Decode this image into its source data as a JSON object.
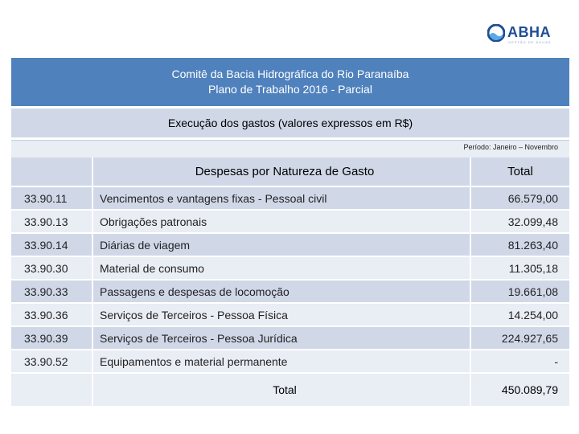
{
  "logo": {
    "text": "ABHA",
    "subtext": "GESTÃO DE ÁGUAS",
    "brand_color": "#1f4e96"
  },
  "header": {
    "line1": "Comitê da Bacia Hidrográfica do Rio Paranaíba",
    "line2": "Plano de Trabalho 2016 - Parcial"
  },
  "subtitle": "Execução dos gastos (valores expressos em R$)",
  "period": "Período: Janeiro – Novembro",
  "table": {
    "header_description": "Despesas por Natureza de Gasto",
    "header_total": "Total",
    "rows": [
      {
        "code": "33.90.11",
        "description": "Vencimentos e vantagens fixas - Pessoal civil",
        "total": "66.579,00"
      },
      {
        "code": "33.90.13",
        "description": "Obrigações patronais",
        "total": "32.099,48"
      },
      {
        "code": "33.90.14",
        "description": "Diárias de viagem",
        "total": "81.263,40"
      },
      {
        "code": "33.90.30",
        "description": "Material de consumo",
        "total": "11.305,18"
      },
      {
        "code": "33.90.33",
        "description": "Passagens e despesas de locomoção",
        "total": "19.661,08"
      },
      {
        "code": "33.90.36",
        "description": "Serviços de Terceiros - Pessoa Física",
        "total": "14.254,00"
      },
      {
        "code": "33.90.39",
        "description": "Serviços de Terceiros - Pessoa Jurídica",
        "total": "224.927,65"
      },
      {
        "code": "33.90.52",
        "description": "Equipamentos e material permanente",
        "total": "-"
      }
    ],
    "total_label": "Total",
    "total_value": "450.089,79"
  },
  "colors": {
    "title_band": "#4f81bd",
    "band_dark": "#d0d8e8",
    "band_light": "#e9edf4"
  }
}
